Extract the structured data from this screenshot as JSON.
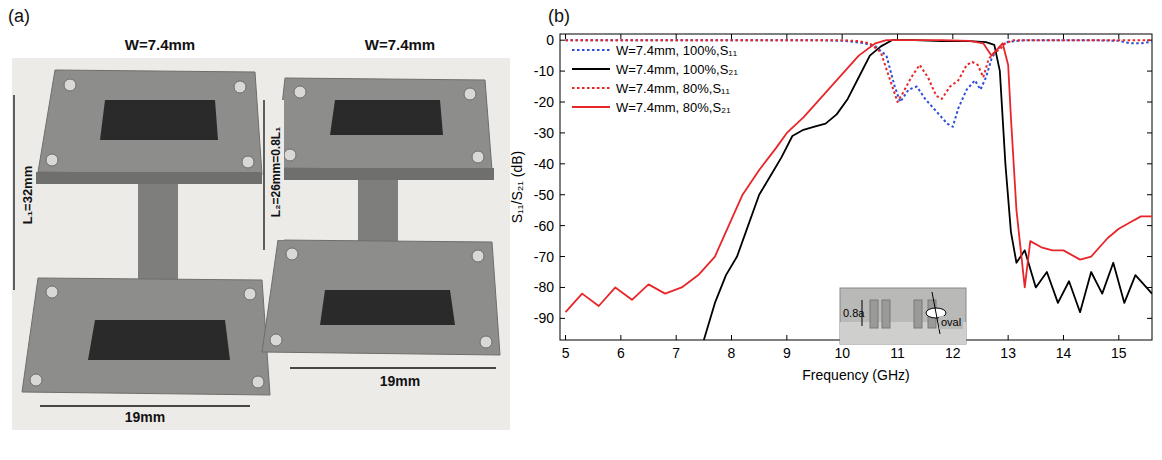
{
  "figure": {
    "panel_labels": [
      "(a)",
      "(b)"
    ]
  },
  "photo": {
    "widths": [
      "W=7.4mm",
      "W=7.4mm"
    ],
    "lengths": [
      "L₁=32mm",
      "L₂=26mm=0.8L₁"
    ],
    "flange_widths": [
      "19mm",
      "19mm"
    ]
  },
  "chart_data": {
    "type": "line",
    "x_label": "Frequency (GHz)",
    "y_label": "S₁₁/S₂₁ (dB)",
    "xlim": [
      4.9,
      15.6
    ],
    "xticks": [
      5,
      6,
      7,
      8,
      9,
      10,
      11,
      12,
      13,
      14,
      15
    ],
    "ylim": [
      -97,
      2
    ],
    "yticks": [
      0,
      -10,
      -20,
      -30,
      -40,
      -50,
      -60,
      -70,
      -80,
      -90
    ],
    "grid": false,
    "legend": "upper left",
    "annotations": [
      "0.8a",
      "oval"
    ],
    "series": [
      {
        "name": "W=7.4mm, 100%,S₁₁",
        "color": "#2b4fd8",
        "line_style": "dotted",
        "x": [
          5,
          7,
          8,
          9,
          9.5,
          10,
          10.2,
          10.4,
          10.6,
          10.8,
          10.95,
          11.05,
          11.2,
          11.35,
          11.5,
          11.7,
          11.9,
          12.0,
          12.1,
          12.25,
          12.4,
          12.5,
          12.6,
          12.7,
          12.8,
          12.9,
          13.0,
          13.3,
          14,
          14.5,
          15,
          15.2,
          15.4,
          15.6
        ],
        "values": [
          0,
          0,
          0,
          0,
          0,
          -0.2,
          -0.5,
          -1,
          -2,
          -5,
          -15,
          -20,
          -16,
          -15,
          -19,
          -23,
          -27,
          -28,
          -22,
          -16,
          -13,
          -16,
          -12,
          -6,
          -3,
          -1.5,
          -0.5,
          0,
          0,
          0,
          -0.2,
          -1,
          -1,
          -0.5
        ]
      },
      {
        "name": "W=7.4mm, 100%,S₂₁",
        "color": "#000000",
        "line_style": "solid",
        "x": [
          7.5,
          7.7,
          7.9,
          8.1,
          8.3,
          8.5,
          8.7,
          8.9,
          9.1,
          9.3,
          9.5,
          9.7,
          9.9,
          10.1,
          10.3,
          10.5,
          10.7,
          10.9,
          11.3,
          11.8,
          12.3,
          12.6,
          12.75,
          12.85,
          12.95,
          13.05,
          13.15,
          13.3,
          13.5,
          13.7,
          13.9,
          14.1,
          14.3,
          14.5,
          14.7,
          14.9,
          15.1,
          15.3,
          15.6
        ],
        "values": [
          -97,
          -85,
          -76,
          -70,
          -60,
          -50,
          -44,
          -38,
          -31,
          -29,
          -28,
          -27,
          -24,
          -19,
          -12,
          -5,
          -2,
          0,
          0,
          -0.3,
          -0.3,
          -0.6,
          -1.5,
          -10,
          -40,
          -62,
          -72,
          -68,
          -80,
          -75,
          -85,
          -78,
          -88,
          -75,
          -82,
          -72,
          -85,
          -76,
          -82
        ]
      },
      {
        "name": "W=7.4mm, 80%,S₁₁",
        "color": "#e8262a",
        "line_style": "dotted",
        "x": [
          5,
          8,
          9,
          10,
          10.3,
          10.5,
          10.7,
          10.85,
          11.0,
          11.1,
          11.25,
          11.4,
          11.55,
          11.7,
          11.8,
          11.95,
          12.1,
          12.25,
          12.35,
          12.45,
          12.55,
          12.65,
          12.75,
          12.85,
          12.95,
          13.1,
          13.5,
          15.6
        ],
        "values": [
          0,
          0,
          0,
          0,
          -0.3,
          -1,
          -4,
          -12,
          -20,
          -17,
          -12,
          -8,
          -12,
          -18,
          -19,
          -15,
          -13,
          -8,
          -7,
          -8,
          -12,
          -6,
          -4,
          -3,
          -1,
          0,
          0,
          0
        ]
      },
      {
        "name": "W=7.4mm, 80%,S₂₁",
        "color": "#e8262a",
        "line_style": "solid",
        "x": [
          5,
          5.3,
          5.6,
          5.9,
          6.2,
          6.5,
          6.8,
          7.1,
          7.4,
          7.7,
          8.0,
          8.2,
          8.5,
          8.8,
          9.0,
          9.3,
          9.6,
          10.0,
          10.3,
          10.6,
          10.8,
          11.3,
          11.8,
          12.3,
          12.55,
          12.7,
          12.8,
          12.9,
          13.0,
          13.05,
          13.15,
          13.3,
          13.4,
          13.6,
          13.8,
          14.0,
          14.3,
          14.5,
          14.8,
          15.0,
          15.2,
          15.4,
          15.6
        ],
        "values": [
          -88,
          -82,
          -86,
          -80,
          -84,
          -79,
          -82,
          -80,
          -76,
          -70,
          -58,
          -50,
          -42,
          -35,
          -30,
          -25,
          -19,
          -11,
          -5,
          -1,
          0,
          0,
          0,
          -0.2,
          -1,
          -5,
          -3,
          -1,
          -8,
          -25,
          -55,
          -80,
          -65,
          -67,
          -68,
          -68,
          -71,
          -70,
          -64,
          -61,
          -59,
          -57,
          -57
        ]
      }
    ]
  }
}
